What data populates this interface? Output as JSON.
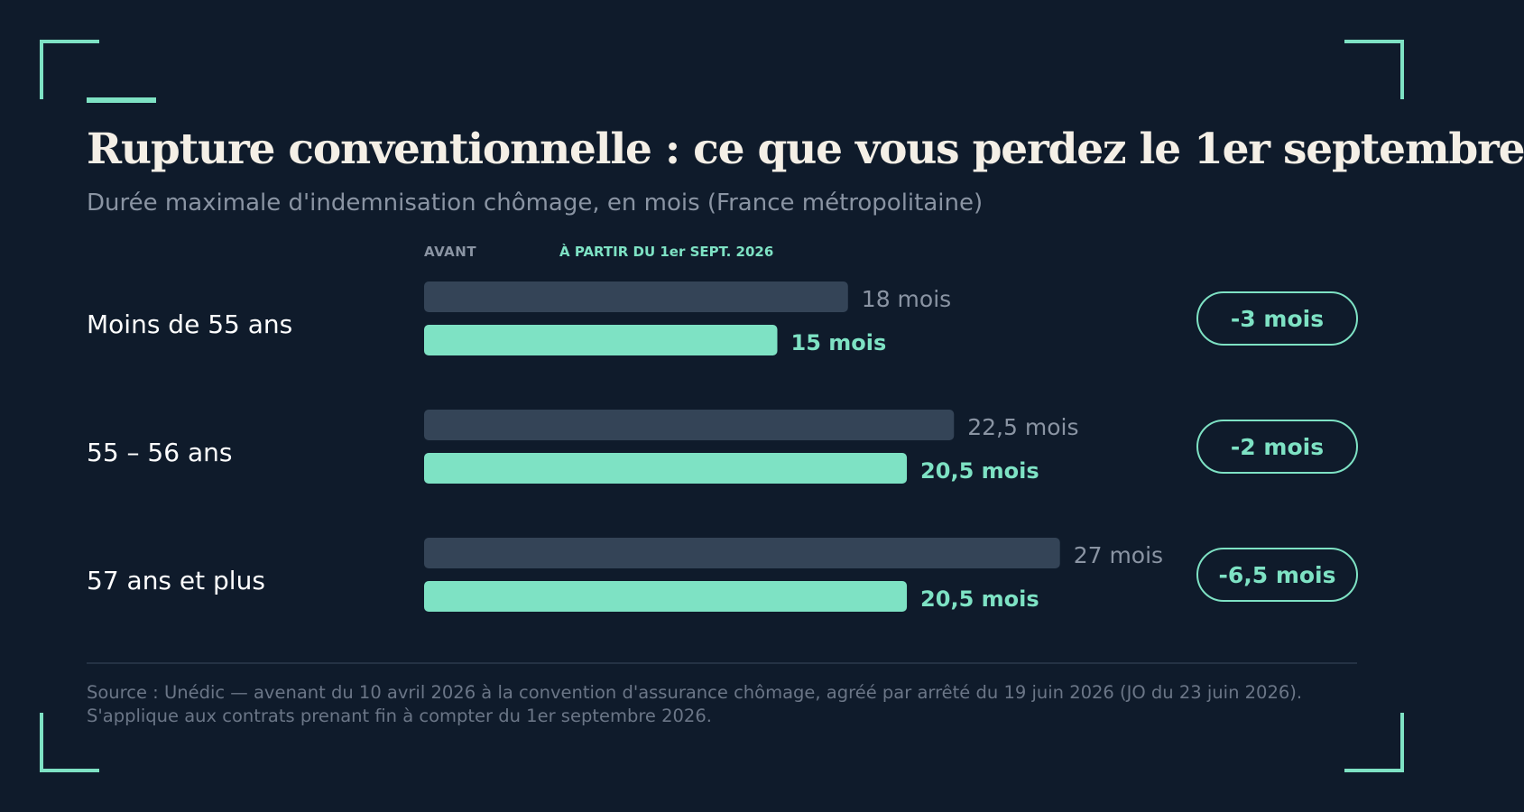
{
  "header": {
    "title": "Rupture conventionnelle : ce que vous perdez le 1er septembre",
    "subtitle": "Durée maximale d'indemnisation chômage, en mois (France métropolitaine)"
  },
  "legend": {
    "before": "AVANT",
    "after": "À PARTIR DU 1er SEPT. 2026"
  },
  "colors": {
    "background": "#0f1b2b",
    "accent": "#7ee2c4",
    "bar_before": "#344457",
    "text_before": "#8a94a3"
  },
  "chart_data": {
    "type": "bar",
    "orientation": "horizontal",
    "xlim": [
      0,
      30
    ],
    "grid": false,
    "categories": [
      "Moins de 55 ans",
      "55 – 56 ans",
      "57 ans et plus"
    ],
    "series": [
      {
        "name": "AVANT",
        "values": [
          18,
          22.5,
          27
        ],
        "labels": [
          "18 mois",
          "22,5 mois",
          "27 mois"
        ]
      },
      {
        "name": "À PARTIR DU 1er SEPT. 2026",
        "values": [
          15,
          20.5,
          20.5
        ],
        "labels": [
          "15 mois",
          "20,5 mois",
          "20,5 mois"
        ]
      }
    ],
    "differences": [
      "-3 mois",
      "-2 mois",
      "-6,5 mois"
    ]
  },
  "footer": {
    "source": "Source : Unédic — avenant du 10 avril 2026 à la convention d'assurance chômage, agréé par arrêté du 19 juin 2026 (JO du 23 juin 2026). S'applique aux contrats prenant fin à compter du 1er septembre 2026."
  }
}
